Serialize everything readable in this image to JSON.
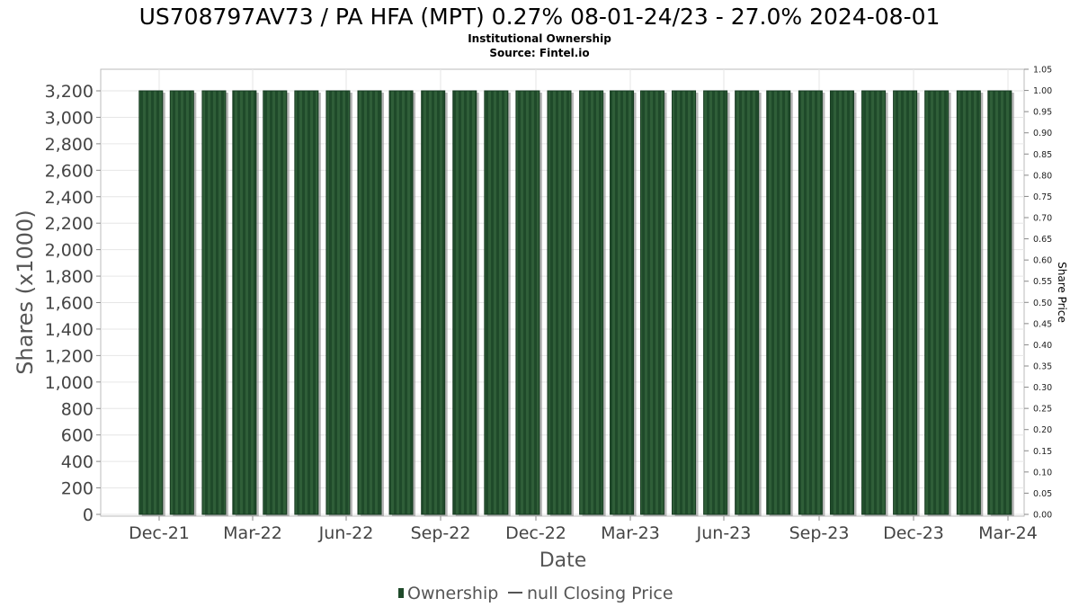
{
  "chart_data": {
    "type": "bar",
    "title": "US708797AV73 / PA HFA (MPT) 0.27% 08-01-24/23 - 27.0% 2024-08-01",
    "subtitle_line1": "Institutional Ownership",
    "subtitle_line2": "Source: Fintel.io",
    "xlabel": "Date",
    "ylabel": "Shares (x1000)",
    "ylabel_right": "Share Price",
    "x_ticks": [
      "Dec-21",
      "Mar-22",
      "Jun-22",
      "Sep-22",
      "Dec-22",
      "Mar-23",
      "Jun-23",
      "Sep-23",
      "Dec-23",
      "Mar-24"
    ],
    "y_ticks": [
      "0",
      "200",
      "400",
      "600",
      "800",
      "1,000",
      "1,200",
      "1,400",
      "1,600",
      "1,800",
      "2,000",
      "2,200",
      "2,400",
      "2,600",
      "2,800",
      "3,000",
      "3,200"
    ],
    "y2_ticks": [
      "0.00",
      "0.05",
      "0.10",
      "0.15",
      "0.20",
      "0.25",
      "0.30",
      "0.35",
      "0.40",
      "0.45",
      "0.50",
      "0.55",
      "0.60",
      "0.65",
      "0.70",
      "0.75",
      "0.80",
      "0.85",
      "0.90",
      "0.95",
      "1.00",
      "1.05"
    ],
    "ylim": [
      0,
      3333
    ],
    "y2lim": [
      0,
      1.05
    ],
    "grid": true,
    "legend_position": "bottom",
    "series": [
      {
        "name": "Ownership",
        "color": "#1f4a2a",
        "dates": [
          "2021-11-16",
          "2021-11-30",
          "2021-12-15",
          "2021-12-31",
          "2022-01-15",
          "2022-01-31",
          "2022-02-15",
          "2022-02-28",
          "2022-03-15",
          "2022-03-31",
          "2022-04-15",
          "2022-04-30",
          "2022-05-15",
          "2022-05-31",
          "2022-06-15",
          "2022-06-30",
          "2022-07-15",
          "2022-07-31",
          "2022-08-15",
          "2022-08-31",
          "2022-09-15",
          "2022-09-30",
          "2022-10-15",
          "2022-10-31",
          "2022-11-15",
          "2022-11-30",
          "2022-12-15",
          "2022-12-31",
          "2023-01-15",
          "2023-01-31",
          "2023-02-15",
          "2023-02-28",
          "2023-03-15",
          "2023-03-31",
          "2023-04-15",
          "2023-04-30",
          "2023-05-15",
          "2023-05-31",
          "2023-06-15",
          "2023-06-30",
          "2023-07-15",
          "2023-07-31",
          "2023-08-15",
          "2023-08-31",
          "2023-09-15",
          "2023-09-30",
          "2023-10-15",
          "2023-10-31",
          "2023-11-15",
          "2023-11-30",
          "2023-12-15",
          "2023-12-31",
          "2024-01-15",
          "2024-01-31",
          "2024-02-15",
          "2024-02-29"
        ],
        "values": [
          3200,
          3200,
          3200,
          3200,
          3200,
          3200,
          3200,
          3200,
          3200,
          3200,
          3200,
          3200,
          3200,
          3200,
          3200,
          3200,
          3200,
          3200,
          3200,
          3200,
          3200,
          3200,
          3200,
          3200,
          3200,
          3200,
          3200,
          3200,
          3200,
          3200,
          3200,
          3200,
          3200,
          3200,
          3200,
          3200,
          3200,
          3200,
          3200,
          3200,
          3200,
          3200,
          3200,
          3200,
          3200,
          3200,
          3200,
          3200,
          3200,
          3200,
          3200,
          3200,
          3200,
          3200,
          3200,
          3200
        ]
      }
    ],
    "legend": [
      {
        "label": "Ownership",
        "kind": "bar",
        "color": "#1f4a2a"
      },
      {
        "label": "null Closing Price",
        "kind": "line",
        "color": "#555555"
      }
    ]
  }
}
